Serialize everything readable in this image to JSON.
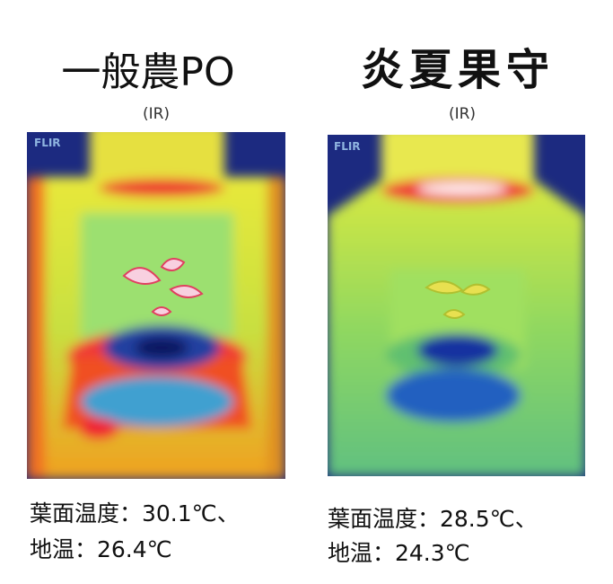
{
  "panels": [
    {
      "title": "一般農PO",
      "subtitle": "(IR)",
      "brand": "FLIR",
      "lines": [
        "葉面温度：30.1℃、",
        "地温：26.4℃"
      ]
    },
    {
      "title": "炎夏果守",
      "subtitle": "(IR)",
      "brand": "FLIR",
      "lines": [
        "葉面温度：28.5℃、",
        "地温：24.3℃"
      ]
    }
  ]
}
